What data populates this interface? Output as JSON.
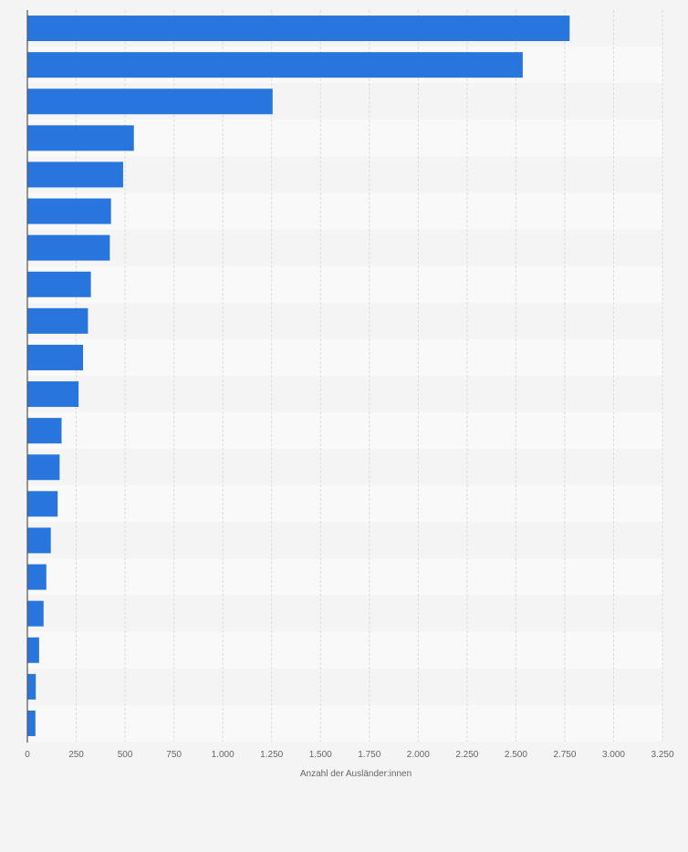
{
  "chart_data": {
    "type": "bar",
    "orientation": "horizontal",
    "title": "",
    "xlabel": "Anzahl der Ausländer:innen",
    "ylabel": "",
    "categories": [
      "",
      "",
      "",
      "",
      "",
      "",
      "",
      "",
      "",
      "",
      "",
      "",
      "",
      "",
      "",
      "",
      "",
      "",
      "",
      ""
    ],
    "values": [
      2775,
      2535,
      1255,
      545,
      490,
      428,
      422,
      325,
      310,
      285,
      262,
      175,
      165,
      155,
      120,
      97,
      83,
      60,
      43,
      41
    ],
    "xlim": [
      0,
      3250
    ],
    "xticks": [
      0,
      250,
      500,
      750,
      1000,
      1250,
      1500,
      1750,
      2000,
      2250,
      2500,
      2750,
      3000,
      3250
    ],
    "xtick_labels": [
      "0",
      "250",
      "500",
      "750",
      "1.000",
      "1.250",
      "1.500",
      "1.750",
      "2.000",
      "2.250",
      "2.500",
      "2.750",
      "3.000",
      "3.250"
    ],
    "grid": true,
    "legend": "none",
    "colors": {
      "bar": "#2876dd",
      "band_dark": "#f4f4f4",
      "band_light": "#f9f9f9",
      "grid": "#dcdcdc",
      "axis": "#555555",
      "tick_text": "#666666"
    }
  }
}
